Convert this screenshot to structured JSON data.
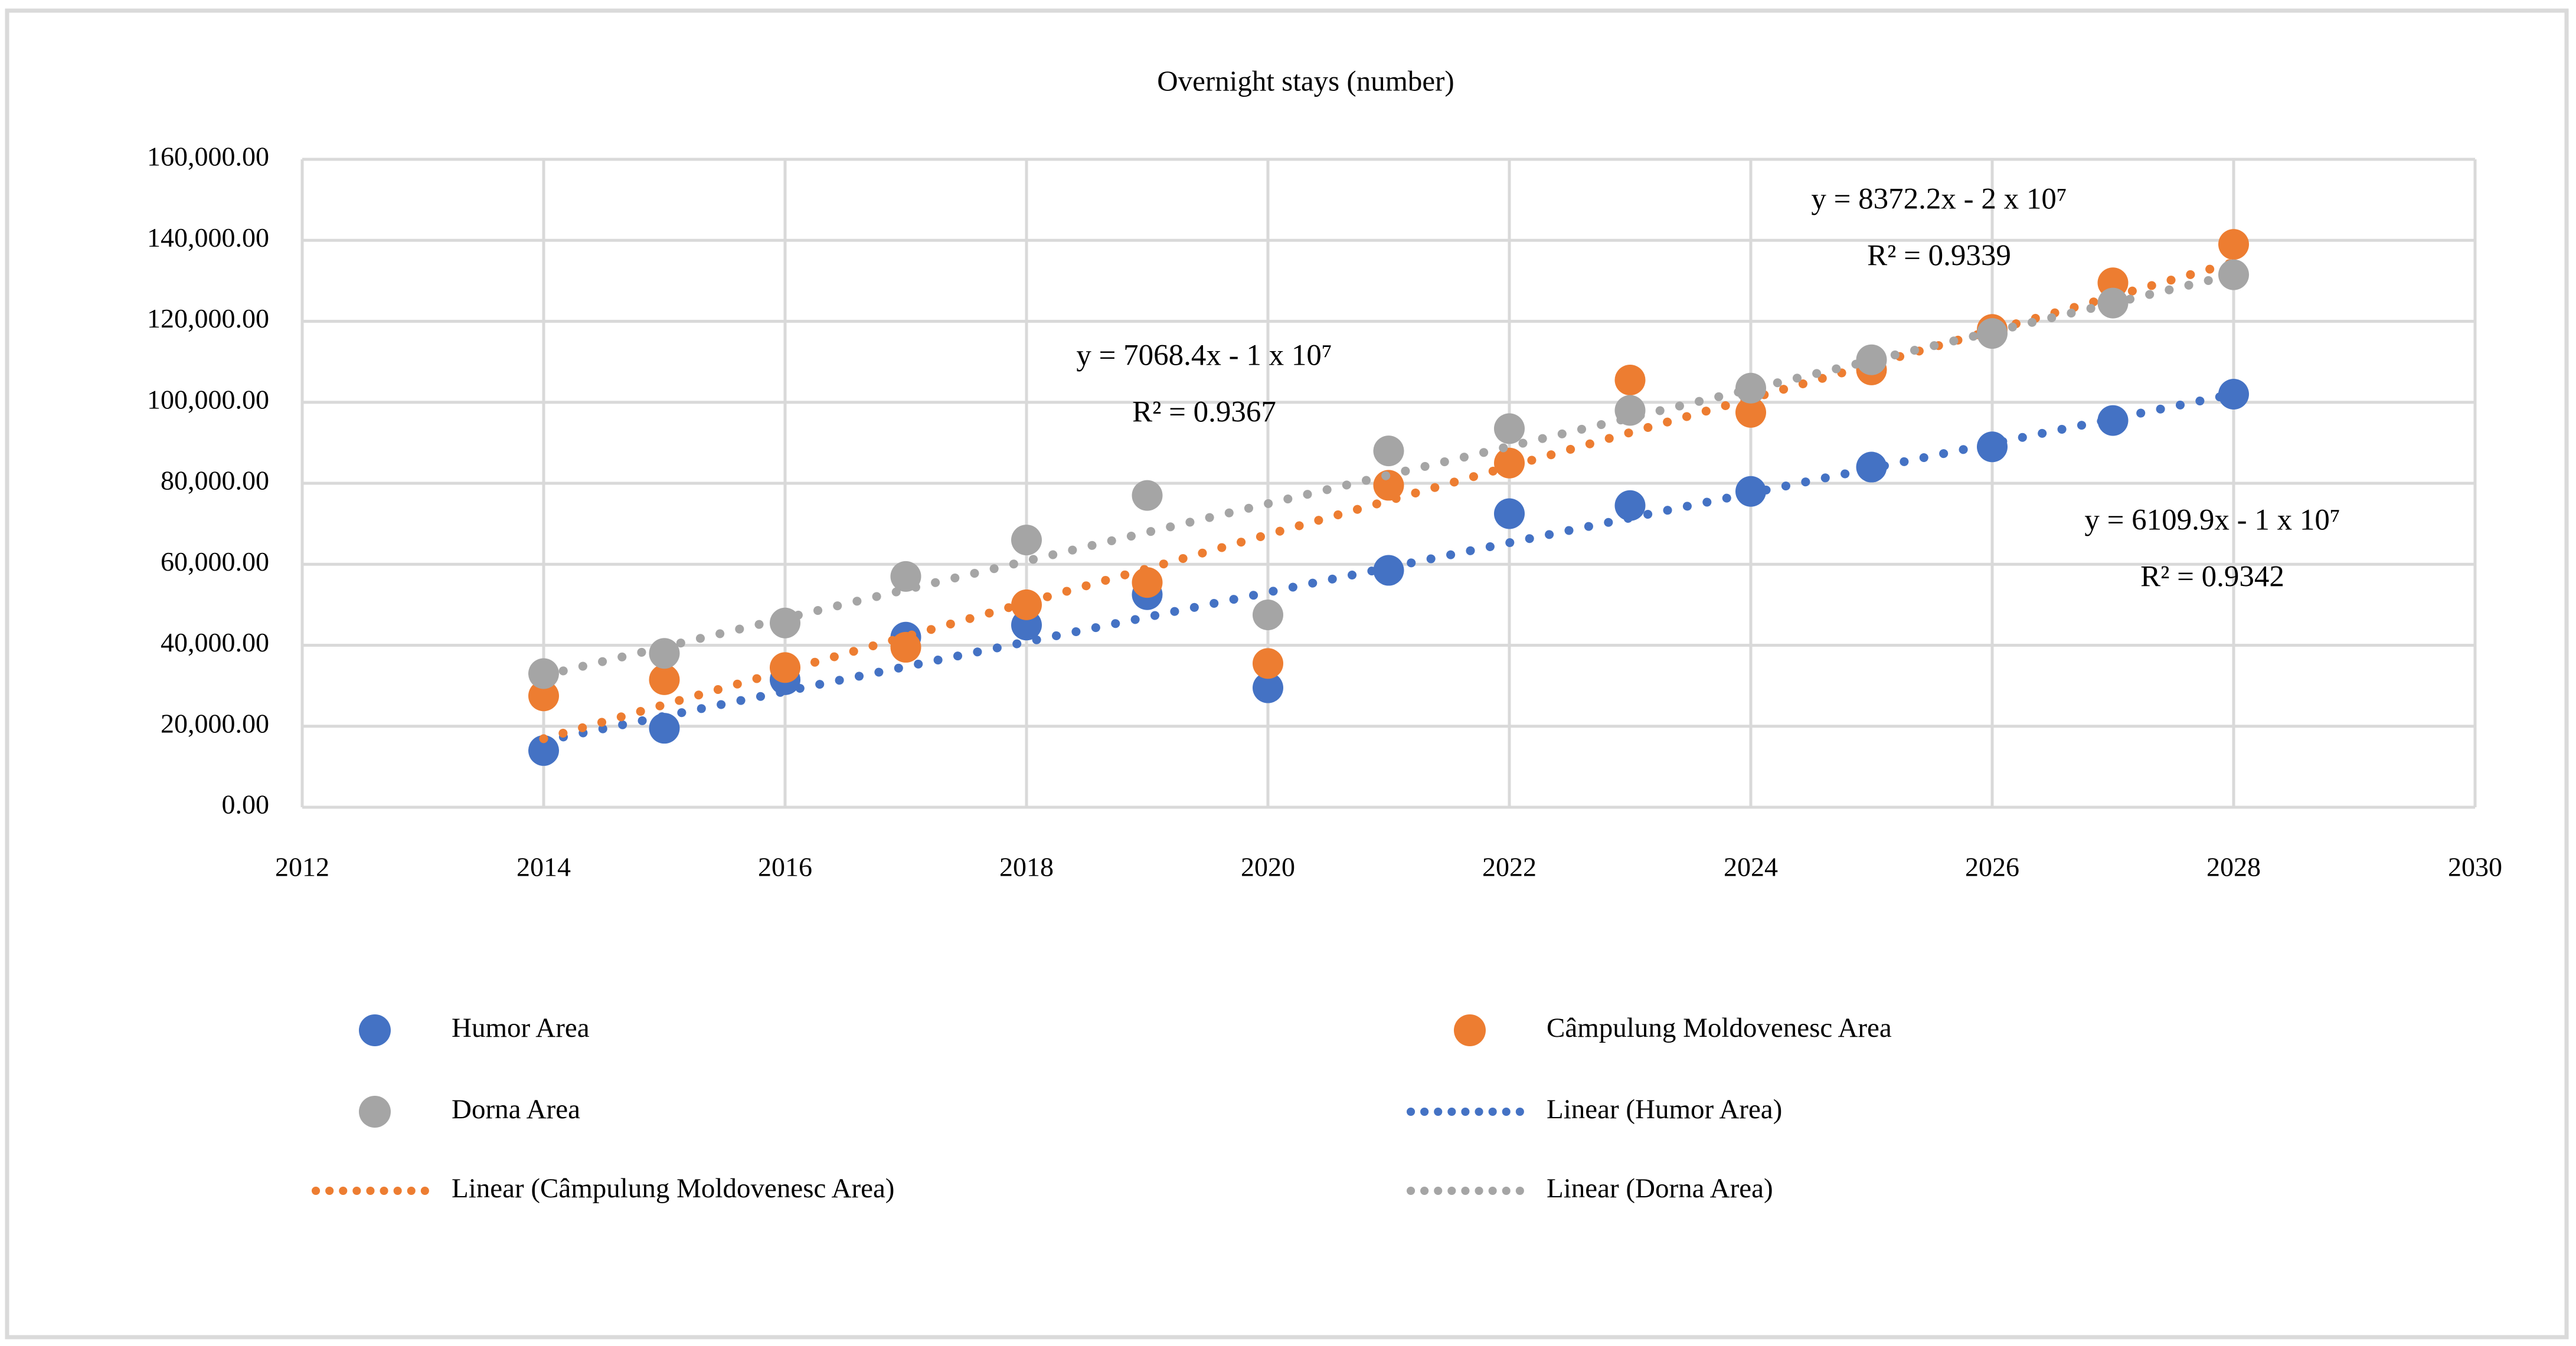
{
  "chart_data": {
    "type": "scatter",
    "title": "Overnight stays (number)",
    "x": [
      2014,
      2015,
      2016,
      2017,
      2018,
      2019,
      2020,
      2021,
      2022,
      2023,
      2024,
      2025,
      2026,
      2027,
      2028
    ],
    "series": [
      {
        "key": "humor",
        "name": "Humor Area",
        "color": "#4472C4",
        "values": [
          14000,
          19500,
          31500,
          42000,
          45000,
          52500,
          29500,
          58500,
          72500,
          74500,
          78000,
          84000,
          89000,
          95500,
          102000
        ]
      },
      {
        "key": "campulung",
        "name": "Câmpulung Moldovenesc Area",
        "color": "#ED7D31",
        "values": [
          27500,
          31500,
          34500,
          39500,
          50000,
          55500,
          35500,
          79500,
          85000,
          105500,
          97500,
          108000,
          118000,
          129500,
          139000
        ]
      },
      {
        "key": "dorna",
        "name": "Dorna Area",
        "color": "#A5A5A5",
        "values": [
          33000,
          38000,
          45500,
          57000,
          66000,
          77000,
          47500,
          88000,
          93500,
          98000,
          103500,
          110500,
          117000,
          124500,
          131500
        ]
      }
    ],
    "trendlines": [
      {
        "key": "humor-trend",
        "series": "humor",
        "label": "Linear (Humor Area)",
        "color": "#4472C4",
        "equation": "y = 6109.9x - 1 x 10⁷",
        "r2": "R² = 0.9342"
      },
      {
        "key": "campulung-trend",
        "series": "campulung",
        "label": "Linear (Câmpulung Moldovenesc Area)",
        "color": "#ED7D31",
        "equation": "y = 8372.2x - 2 x 10⁷",
        "r2": "R² = 0.9339"
      },
      {
        "key": "dorna-trend",
        "series": "dorna",
        "label": "Linear (Dorna Area)",
        "color": "#A5A5A5",
        "equation": "y = 7068.4x - 1 x 10⁷",
        "r2": "R² = 0.9367"
      }
    ],
    "xlim": [
      2012,
      2030
    ],
    "ylim": [
      0,
      160000
    ],
    "grid": true,
    "legend_position": "bottom",
    "x_tick_labels": [
      "2012",
      "2014",
      "2016",
      "2018",
      "2020",
      "2022",
      "2024",
      "2026",
      "2028",
      "2030"
    ],
    "y_tick_labels": [
      "0.00",
      "20,000.00",
      "40,000.00",
      "60,000.00",
      "80,000.00",
      "100,000.00",
      "120,000.00",
      "140,000.00",
      "160,000.00"
    ],
    "annotations": [
      {
        "line1": "y = 7068.4x - 1 x 10⁷",
        "line2": "R² = 0.9367",
        "series": "dorna",
        "ax": 2040,
        "ay": 607,
        "line_gap": 96
      },
      {
        "line1": "y = 8372.2x - 2 x 10⁷",
        "line2": "R² = 0.9339",
        "series": "campulung",
        "ax": 3285,
        "ay": 342,
        "line_gap": 96
      },
      {
        "line1": "y = 6109.9x - 1 x 10⁷",
        "line2": "R² = 0.9342",
        "series": "humor",
        "ax": 3748,
        "ay": 886,
        "line_gap": 96
      }
    ],
    "legend": [
      {
        "label": "Humor Area",
        "swatch": "marker",
        "color": "#4472C4",
        "row": 0,
        "col": 0
      },
      {
        "label": "Câmpulung Moldovenesc Area",
        "swatch": "marker",
        "color": "#ED7D31",
        "row": 0,
        "col": 1
      },
      {
        "label": "Dorna Area",
        "swatch": "marker",
        "color": "#A5A5A5",
        "row": 1,
        "col": 0
      },
      {
        "label": "Linear (Humor Area)",
        "swatch": "dotted-line",
        "color": "#4472C4",
        "row": 1,
        "col": 1
      },
      {
        "label": "Linear (Câmpulung Moldovenesc Area)",
        "swatch": "dotted-line",
        "color": "#ED7D31",
        "row": 2,
        "col": 0
      },
      {
        "label": "Linear (Dorna Area)",
        "swatch": "dotted-line",
        "color": "#A5A5A5",
        "row": 2,
        "col": 1
      }
    ],
    "colors": {
      "gridline": "#D9D9D9",
      "frame": "#DADADA",
      "text": "#000000",
      "background": "#FFFFFF"
    }
  }
}
